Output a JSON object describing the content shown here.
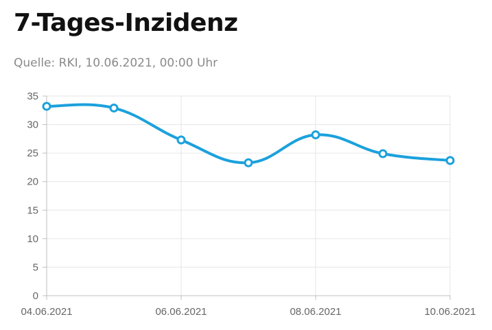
{
  "header": {
    "title": "7-Tages-Inzidenz",
    "subtitle": "Quelle: RKI, 10.06.2021, 00:00 Uhr"
  },
  "chart_data": {
    "type": "line",
    "title": "7-Tages-Inzidenz",
    "subtitle": "Quelle: RKI, 10.06.2021, 00:00 Uhr",
    "xlabel": "",
    "ylabel": "",
    "x": [
      "04.06.2021",
      "05.06.2021",
      "06.06.2021",
      "07.06.2021",
      "08.06.2021",
      "09.06.2021",
      "10.06.2021"
    ],
    "x_tick_labels": [
      "04.06.2021",
      "06.06.2021",
      "08.06.2021",
      "10.06.2021"
    ],
    "y_ticks": [
      0,
      5,
      10,
      15,
      20,
      25,
      30,
      35
    ],
    "ylim": [
      0,
      35
    ],
    "grid": true,
    "series": [
      {
        "values": [
          33.2,
          32.9,
          27.3,
          23.3,
          28.2,
          24.9,
          23.7
        ],
        "color": "#1ba1dc"
      }
    ],
    "colors": {
      "line": "#1ba1dc",
      "grid": "#e6e6e6",
      "axis": "#bfbfbf",
      "tick_text": "#666666"
    }
  }
}
